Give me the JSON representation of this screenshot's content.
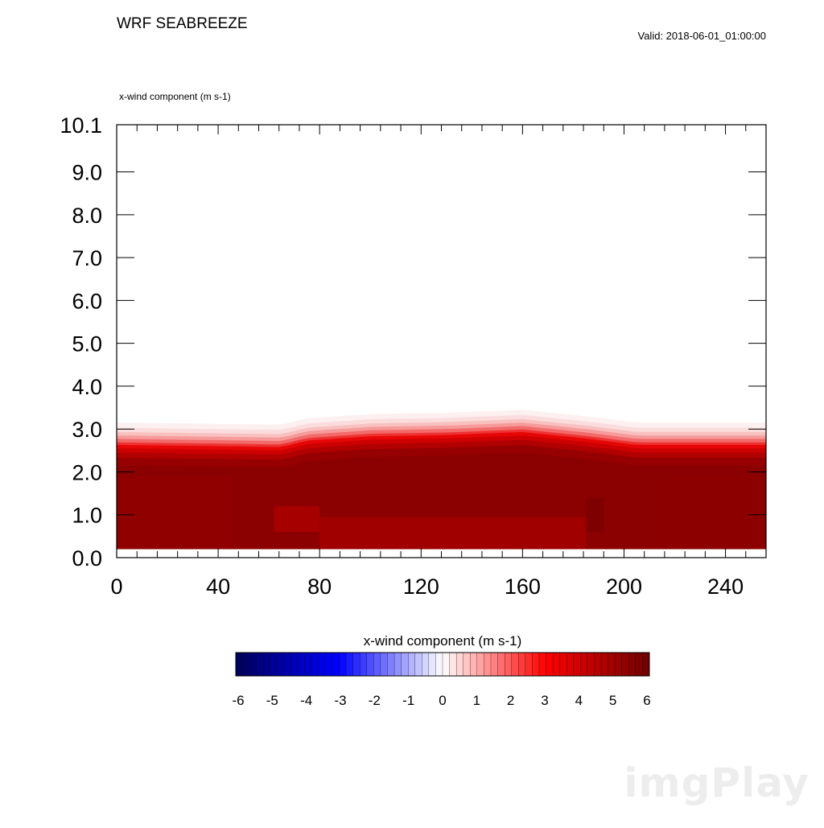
{
  "header": {
    "title": "WRF SEABREEZE",
    "valid": "Valid: 2018-06-01_01:00:00",
    "field_label": "x-wind component   (m s-1)"
  },
  "watermark": "imgPlay",
  "chart_data": {
    "type": "heatmap",
    "title": "WRF SEABREEZE",
    "subtitle": "Valid: 2018-06-01_01:00:00",
    "field": "x-wind component   (m s-1)",
    "xlim": [
      0,
      256
    ],
    "ylim": [
      0,
      10.1
    ],
    "x_ticks": [
      0,
      40,
      80,
      120,
      160,
      200,
      240
    ],
    "y_ticks": [
      0.0,
      1.0,
      2.0,
      3.0,
      4.0,
      5.0,
      6.0,
      7.0,
      8.0,
      9.0,
      10.1
    ],
    "x_tick_labels": [
      "0",
      "40",
      "80",
      "120",
      "160",
      "200",
      "240"
    ],
    "y_tick_labels": [
      "0.0",
      "1.0",
      "2.0",
      "3.0",
      "4.0",
      "5.0",
      "6.0",
      "7.0",
      "8.0",
      "9.0",
      "10.1"
    ],
    "grid": false,
    "data_bottom": 0.2,
    "profile_x": [
      0,
      40,
      65,
      75,
      100,
      130,
      160,
      185,
      205,
      225,
      256
    ],
    "top_height": [
      3.15,
      3.12,
      3.1,
      3.25,
      3.35,
      3.38,
      3.45,
      3.3,
      3.15,
      3.15,
      3.15
    ],
    "bands": [
      {
        "value": 0.3,
        "color": "#fdf0f0"
      },
      {
        "value": 0.8,
        "color": "#fbdcdc"
      },
      {
        "value": 1.4,
        "color": "#f9c0c0"
      },
      {
        "value": 2.0,
        "color": "#f69a9a"
      },
      {
        "value": 2.6,
        "color": "#f26a6a"
      },
      {
        "value": 3.2,
        "color": "#ee3232"
      },
      {
        "value": 3.8,
        "color": "#e60606"
      },
      {
        "value": 4.4,
        "color": "#cc0000"
      },
      {
        "value": 5.0,
        "color": "#b00000"
      },
      {
        "value": 5.6,
        "color": "#960000"
      },
      {
        "value": 6.0,
        "color": "#8b0000"
      }
    ],
    "band_heights_below_top": [
      0.0,
      0.12,
      0.22,
      0.3,
      0.38,
      0.46,
      0.52,
      0.6,
      0.7,
      0.82,
      1.0
    ],
    "core_patches": [
      {
        "x": [
          80,
          185
        ],
        "y": [
          0.2,
          0.95
        ],
        "value": 4.8,
        "color": "#a40000"
      },
      {
        "x": [
          62,
          80
        ],
        "y": [
          0.6,
          1.2
        ],
        "value": 4.5,
        "color": "#aa0000"
      },
      {
        "x": [
          185,
          192
        ],
        "y": [
          0.6,
          1.4
        ],
        "value": 5.9,
        "color": "#7d0000"
      },
      {
        "x": [
          0,
          45
        ],
        "y": [
          0.2,
          1.9
        ],
        "value": 5.7,
        "color": "#900000"
      },
      {
        "x": [
          215,
          256
        ],
        "y": [
          0.2,
          1.9
        ],
        "value": 5.8,
        "color": "#8c0000"
      }
    ],
    "colorbar": {
      "title": "x-wind component  (m s-1)",
      "min": -6,
      "max": 6,
      "levels": 60,
      "tick_labels": [
        "-6",
        "-5",
        "-4",
        "-3",
        "-2",
        "-1",
        "0",
        "1",
        "2",
        "3",
        "4",
        "5",
        "6"
      ],
      "colors": {
        "low": "#00005a",
        "mid_low": "#0000ff",
        "zero": "#ffffff",
        "mid_high": "#ff0000",
        "high": "#6e0000"
      }
    }
  }
}
